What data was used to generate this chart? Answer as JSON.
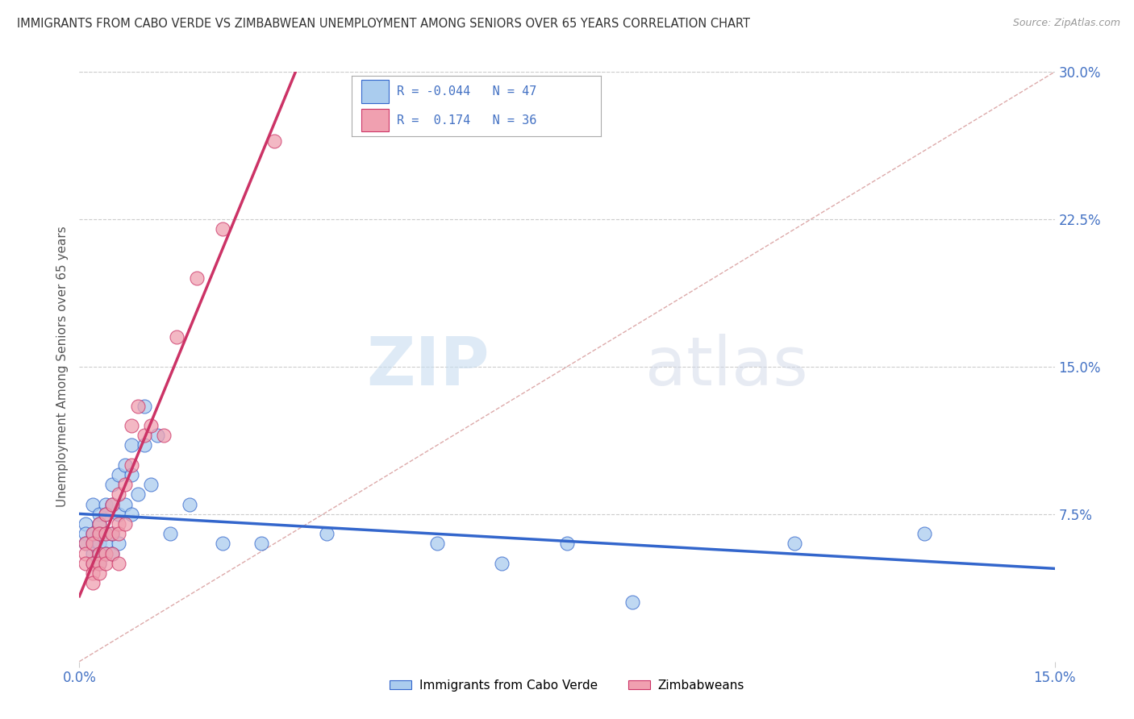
{
  "title": "IMMIGRANTS FROM CABO VERDE VS ZIMBABWEAN UNEMPLOYMENT AMONG SENIORS OVER 65 YEARS CORRELATION CHART",
  "source": "Source: ZipAtlas.com",
  "ylabel": "Unemployment Among Seniors over 65 years",
  "xlim": [
    0.0,
    0.15
  ],
  "ylim": [
    0.0,
    0.3
  ],
  "yticks_right": [
    0.075,
    0.15,
    0.225,
    0.3
  ],
  "ytick_right_labels": [
    "7.5%",
    "15.0%",
    "22.5%",
    "30.0%"
  ],
  "watermark_zip": "ZIP",
  "watermark_atlas": "atlas",
  "legend_label1": "Immigrants from Cabo Verde",
  "legend_label2": "Zimbabweans",
  "R1": "-0.044",
  "N1": "47",
  "R2": "0.174",
  "N2": "36",
  "color1": "#aaccee",
  "color2": "#f0a0b0",
  "trendline1_color": "#3366cc",
  "trendline2_color": "#cc3366",
  "cabo_verde_x": [
    0.001,
    0.001,
    0.001,
    0.002,
    0.002,
    0.002,
    0.002,
    0.002,
    0.003,
    0.003,
    0.003,
    0.003,
    0.003,
    0.003,
    0.004,
    0.004,
    0.004,
    0.004,
    0.004,
    0.005,
    0.005,
    0.005,
    0.005,
    0.006,
    0.006,
    0.006,
    0.007,
    0.007,
    0.008,
    0.008,
    0.008,
    0.009,
    0.01,
    0.01,
    0.011,
    0.012,
    0.014,
    0.017,
    0.022,
    0.028,
    0.038,
    0.055,
    0.065,
    0.075,
    0.085,
    0.11,
    0.13
  ],
  "cabo_verde_y": [
    0.07,
    0.065,
    0.06,
    0.08,
    0.065,
    0.06,
    0.055,
    0.05,
    0.075,
    0.07,
    0.065,
    0.06,
    0.055,
    0.05,
    0.08,
    0.075,
    0.065,
    0.06,
    0.055,
    0.09,
    0.08,
    0.065,
    0.055,
    0.095,
    0.075,
    0.06,
    0.1,
    0.08,
    0.11,
    0.095,
    0.075,
    0.085,
    0.13,
    0.11,
    0.09,
    0.115,
    0.065,
    0.08,
    0.06,
    0.06,
    0.065,
    0.06,
    0.05,
    0.06,
    0.03,
    0.06,
    0.065
  ],
  "zimbabwe_x": [
    0.001,
    0.001,
    0.001,
    0.002,
    0.002,
    0.002,
    0.002,
    0.002,
    0.003,
    0.003,
    0.003,
    0.003,
    0.003,
    0.004,
    0.004,
    0.004,
    0.004,
    0.005,
    0.005,
    0.005,
    0.006,
    0.006,
    0.006,
    0.006,
    0.007,
    0.007,
    0.008,
    0.008,
    0.009,
    0.01,
    0.011,
    0.013,
    0.015,
    0.018,
    0.022,
    0.03
  ],
  "zimbabwe_y": [
    0.06,
    0.055,
    0.05,
    0.065,
    0.06,
    0.05,
    0.045,
    0.04,
    0.07,
    0.065,
    0.055,
    0.05,
    0.045,
    0.075,
    0.065,
    0.055,
    0.05,
    0.08,
    0.065,
    0.055,
    0.085,
    0.07,
    0.065,
    0.05,
    0.09,
    0.07,
    0.12,
    0.1,
    0.13,
    0.115,
    0.12,
    0.115,
    0.165,
    0.195,
    0.22,
    0.265
  ]
}
